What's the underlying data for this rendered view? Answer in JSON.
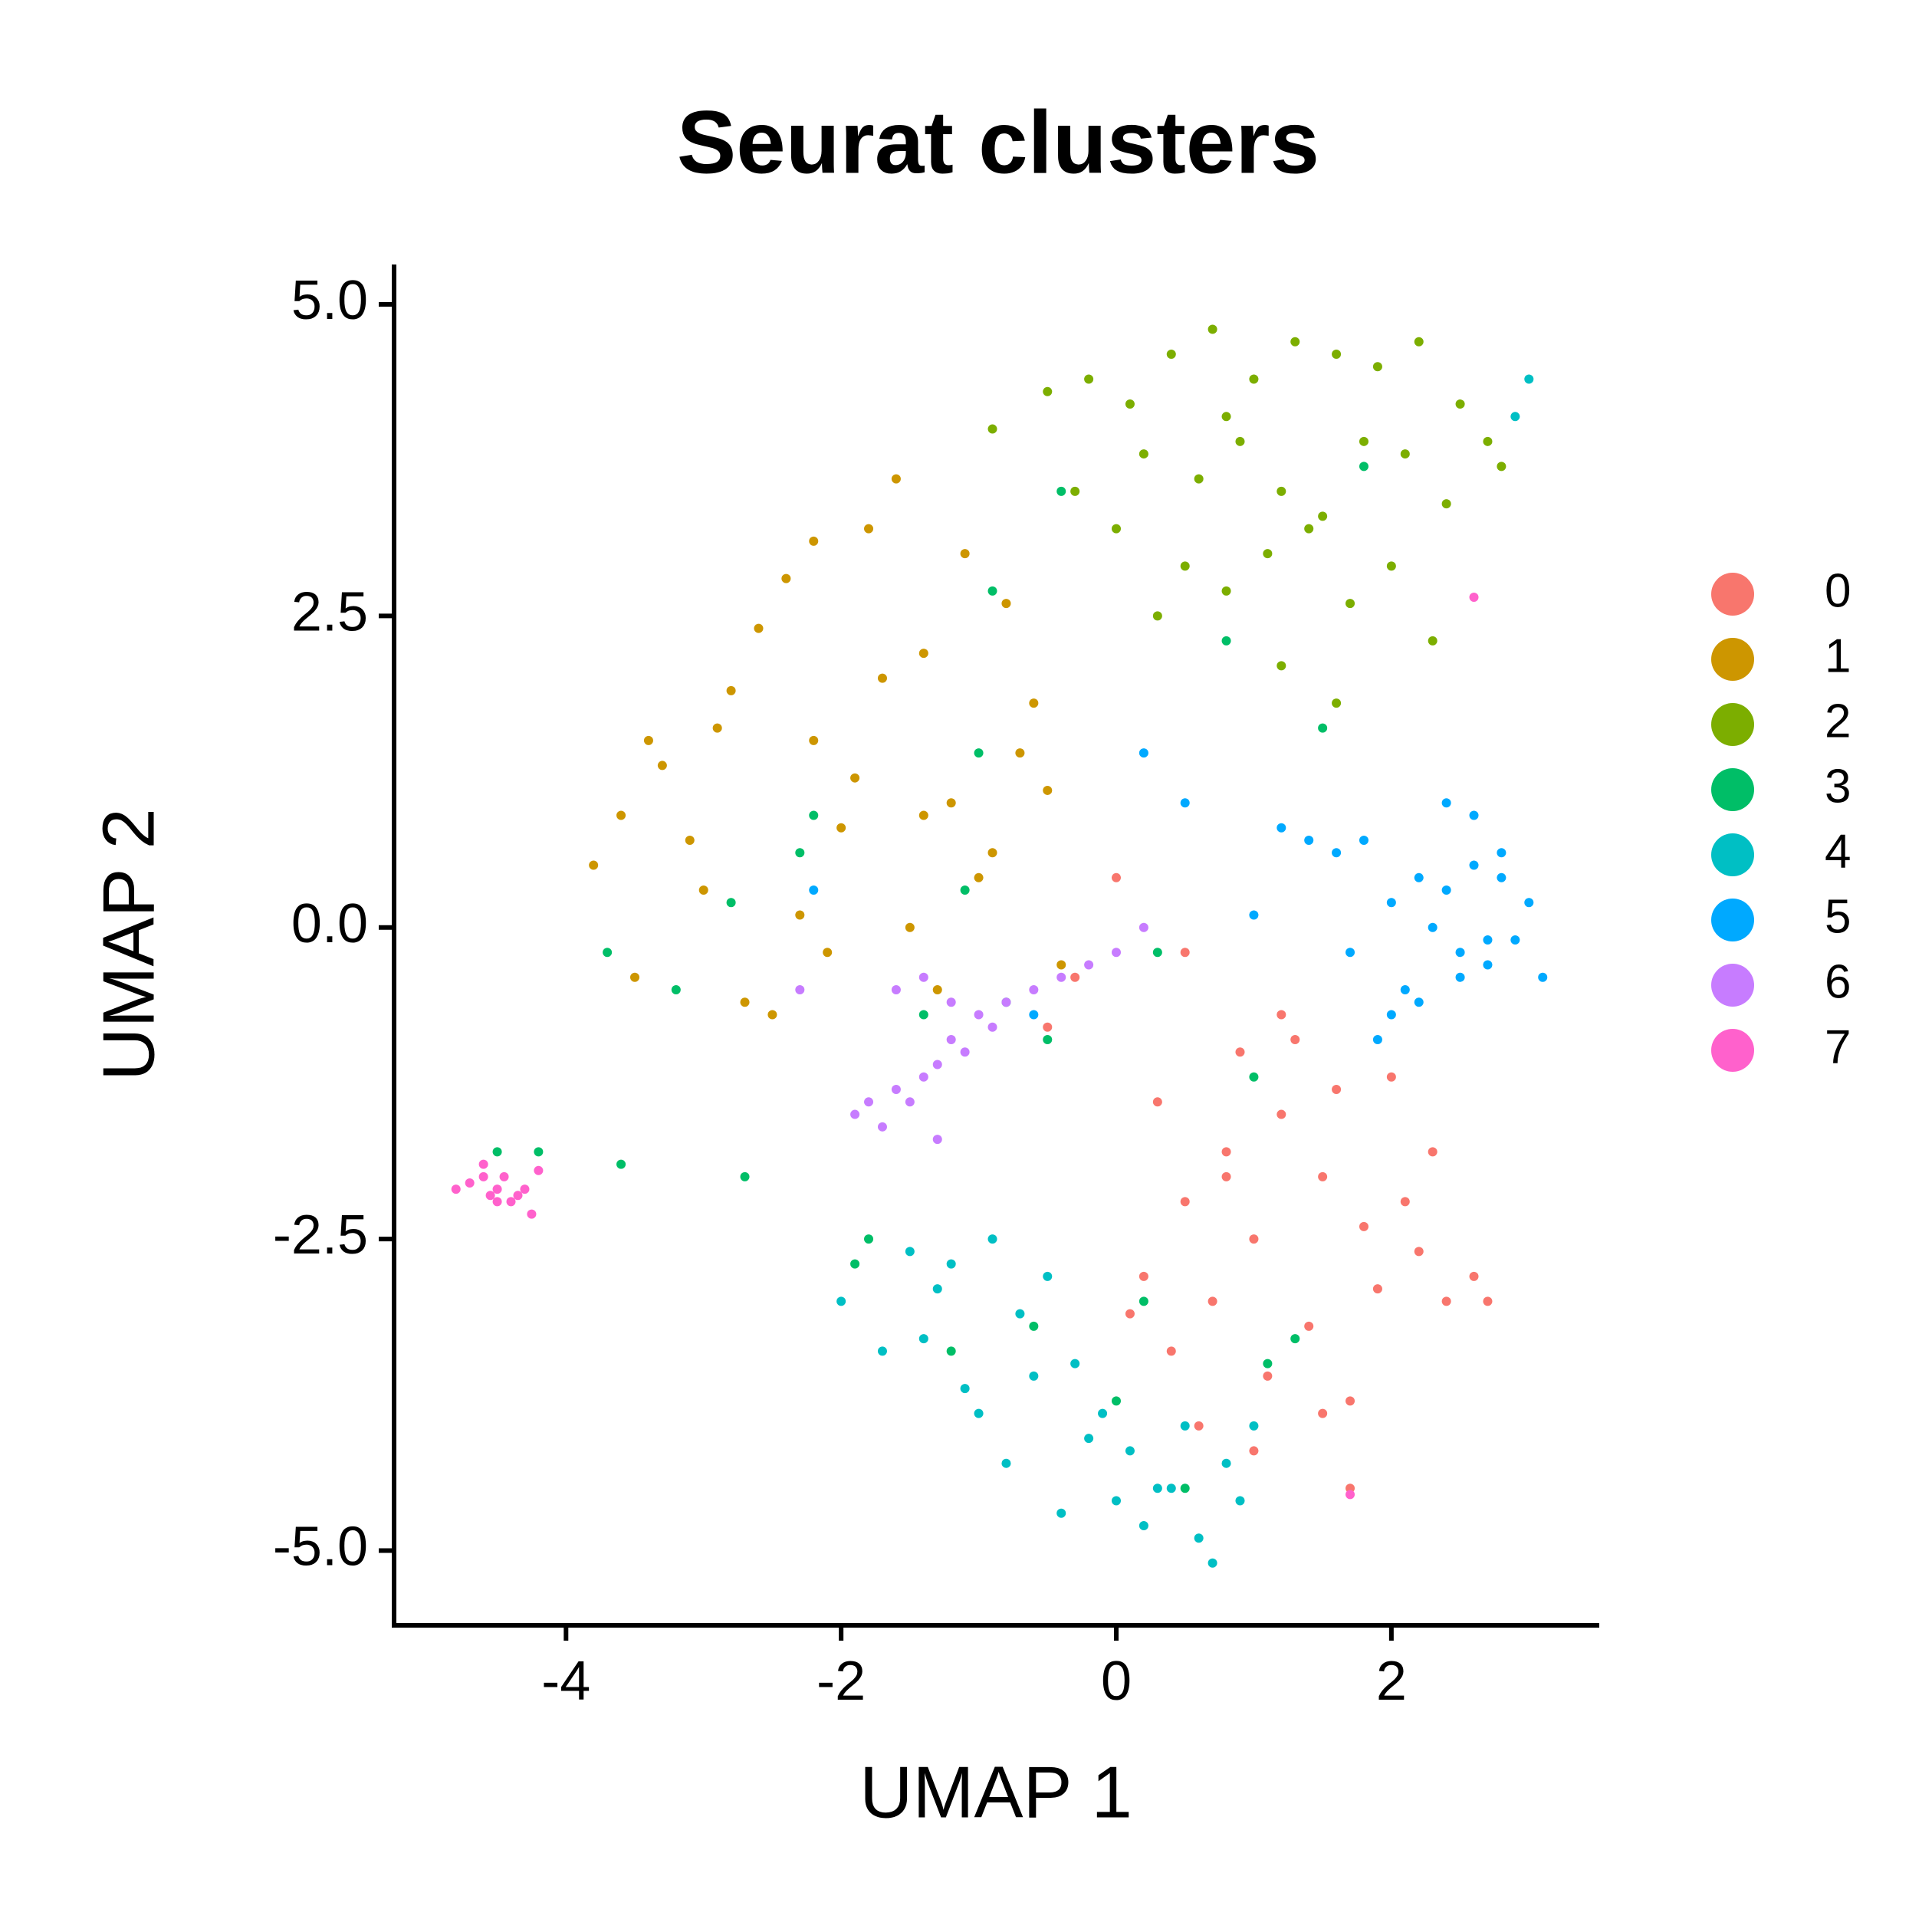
{
  "chart_data": {
    "type": "scatter",
    "title": "Seurat clusters",
    "x_label": "UMAP 1",
    "y_label": "UMAP 2",
    "xlim": [
      -5.25,
      3.5
    ],
    "ylim": [
      -5.6,
      5.32
    ],
    "xticks": [
      -4,
      -2,
      0,
      2
    ],
    "yticks": [
      {
        "value": 5,
        "label": "5.0"
      },
      2.5,
      {
        "value": 0,
        "label": "0.0"
      },
      -2.5,
      {
        "value": -5,
        "label": "-5.0"
      }
    ],
    "grid": false,
    "legend": "right",
    "series": [
      {
        "name": "0",
        "color": "#F8766D",
        "x": [
          0.2,
          0.5,
          0.8,
          1.0,
          1.2,
          1.5,
          1.8,
          2.0,
          2.2,
          2.4,
          0.4,
          0.7,
          1.1,
          1.4,
          1.7,
          2.1,
          0.3,
          0.9,
          1.3,
          1.6,
          1.9,
          2.3,
          0.6,
          1.0,
          1.5,
          0.1,
          0.8,
          1.2,
          2.6,
          -0.3,
          0.0,
          0.5,
          1.7,
          -0.5,
          2.7
        ],
        "values": [
          -2.8,
          -2.2,
          -1.8,
          -2.5,
          -1.5,
          -2.0,
          -2.4,
          -1.2,
          -2.6,
          -3.0,
          -3.4,
          -3.0,
          -3.6,
          -3.2,
          -3.8,
          -2.2,
          -1.4,
          -1.0,
          -0.9,
          -1.3,
          -2.9,
          -1.8,
          -4.0,
          -4.2,
          -3.9,
          -3.1,
          -2.0,
          -0.7,
          -2.8,
          -0.4,
          0.4,
          -0.2,
          -4.5,
          -0.8,
          -3.0
        ]
      },
      {
        "name": "1",
        "color": "#CD9600",
        "x": [
          -3.8,
          -3.6,
          -3.3,
          -3.0,
          -2.8,
          -2.6,
          -2.4,
          -2.2,
          -2.0,
          -1.8,
          -1.6,
          -1.4,
          -1.2,
          -1.0,
          -0.8,
          -0.6,
          -0.4,
          -3.5,
          -3.1,
          -2.7,
          -2.3,
          -1.9,
          -1.5,
          -1.1,
          -0.7,
          -2.5,
          -2.1,
          -1.7,
          -1.3,
          -0.9,
          -2.9,
          -3.4,
          -1.4,
          -0.5,
          -2.2
        ],
        "values": [
          0.5,
          0.9,
          1.3,
          0.3,
          1.9,
          2.4,
          2.8,
          1.5,
          0.8,
          3.2,
          3.6,
          2.2,
          1.0,
          0.4,
          2.6,
          1.8,
          -0.3,
          -0.4,
          0.7,
          -0.6,
          0.1,
          1.2,
          0.0,
          3.0,
          1.4,
          -0.7,
          -0.2,
          2.0,
          -0.5,
          0.6,
          1.6,
          1.5,
          0.9,
          1.1,
          3.1
        ]
      },
      {
        "name": "2",
        "color": "#7CAE00",
        "x": [
          -0.9,
          -0.5,
          -0.2,
          0.1,
          0.4,
          0.7,
          1.0,
          1.3,
          1.6,
          1.9,
          2.2,
          2.5,
          2.8,
          -0.3,
          0.2,
          0.6,
          0.9,
          1.2,
          1.5,
          1.8,
          2.1,
          2.4,
          2.7,
          0.0,
          0.5,
          0.8,
          1.1,
          1.4,
          1.7,
          2.0,
          1.2,
          1.6,
          0.3,
          2.3,
          0.8
        ],
        "values": [
          4.0,
          4.3,
          4.4,
          4.2,
          4.6,
          4.8,
          4.4,
          4.7,
          4.6,
          4.5,
          4.7,
          4.2,
          3.7,
          3.5,
          3.8,
          3.6,
          3.9,
          3.5,
          3.3,
          3.9,
          3.8,
          3.4,
          3.9,
          3.2,
          2.9,
          2.7,
          3.0,
          3.2,
          2.6,
          2.9,
          2.1,
          1.8,
          2.5,
          2.3,
          4.1
        ]
      },
      {
        "name": "3",
        "color": "#00BE67",
        "x": [
          -4.5,
          -4.2,
          -3.6,
          -2.7,
          -1.8,
          -1.2,
          -0.6,
          0.0,
          0.5,
          1.1,
          1.5,
          -0.4,
          -1.0,
          -2.2,
          -2.8,
          -3.7,
          0.8,
          1.8,
          -1.9,
          -1.4,
          -0.8,
          0.3,
          1.0,
          -0.5,
          -1.1,
          -3.2,
          -2.3,
          0.2,
          1.3,
          -0.9
        ],
        "values": [
          -1.8,
          -1.8,
          -1.9,
          -2.0,
          -2.5,
          -3.4,
          -3.2,
          -3.8,
          -4.5,
          -3.5,
          1.6,
          3.5,
          1.4,
          0.9,
          0.2,
          -0.2,
          2.3,
          3.7,
          -2.7,
          -0.7,
          -0.6,
          -0.2,
          -1.2,
          -0.9,
          0.3,
          -0.5,
          0.6,
          -3.0,
          -3.3,
          2.7
        ]
      },
      {
        "name": "4",
        "color": "#00BFC4",
        "x": [
          -2.0,
          -1.7,
          -1.4,
          -1.2,
          -1.0,
          -0.8,
          -0.6,
          -0.4,
          -0.2,
          0.0,
          0.2,
          0.4,
          0.6,
          0.8,
          1.0,
          -1.5,
          -1.1,
          -0.7,
          -0.3,
          0.1,
          0.5,
          0.9,
          -0.9,
          -0.5,
          -0.1,
          0.3,
          0.7,
          2.9,
          3.0,
          -1.3
        ],
        "values": [
          -3.0,
          -3.4,
          -3.3,
          -2.7,
          -3.9,
          -4.3,
          -3.6,
          -4.7,
          -4.1,
          -4.6,
          -4.8,
          -4.5,
          -4.9,
          -4.3,
          -4.0,
          -2.6,
          -3.7,
          -3.1,
          -3.5,
          -4.2,
          -4.0,
          -4.6,
          -2.5,
          -2.8,
          -3.9,
          -4.5,
          -5.1,
          4.1,
          4.4,
          -2.9
        ]
      },
      {
        "name": "5",
        "color": "#00A9FF",
        "x": [
          1.4,
          1.6,
          1.8,
          2.0,
          2.2,
          2.4,
          2.6,
          2.8,
          3.0,
          3.1,
          2.5,
          2.7,
          2.9,
          2.3,
          2.1,
          1.9,
          1.2,
          1.0,
          0.5,
          0.2,
          2.4,
          2.6,
          2.8,
          2.2,
          1.7,
          2.0,
          -2.2,
          -0.6,
          2.5,
          2.7
        ],
        "values": [
          0.7,
          0.6,
          0.7,
          0.2,
          0.4,
          0.3,
          0.5,
          0.4,
          0.2,
          -0.4,
          -0.2,
          -0.3,
          -0.1,
          0.0,
          -0.5,
          -0.9,
          0.8,
          0.1,
          1.0,
          1.4,
          1.0,
          0.9,
          0.6,
          -0.6,
          -0.2,
          -0.7,
          0.3,
          -0.7,
          -0.4,
          -0.1
        ]
      },
      {
        "name": "6",
        "color": "#C77CFF",
        "x": [
          -1.9,
          -1.8,
          -1.7,
          -1.6,
          -1.5,
          -1.4,
          -1.3,
          -1.2,
          -1.1,
          -1.0,
          -0.8,
          -0.6,
          -0.4,
          -0.2,
          0.0,
          0.2,
          -1.6,
          -1.4,
          -1.2,
          -2.3,
          -1.3,
          -0.9
        ],
        "values": [
          -1.5,
          -1.4,
          -1.6,
          -1.3,
          -1.4,
          -1.2,
          -1.1,
          -0.9,
          -1.0,
          -0.7,
          -0.6,
          -0.5,
          -0.4,
          -0.3,
          -0.2,
          0.0,
          -0.5,
          -0.4,
          -0.6,
          -0.5,
          -1.7,
          -0.8
        ]
      },
      {
        "name": "7",
        "color": "#FF61CC",
        "x": [
          -4.8,
          -4.7,
          -4.6,
          -4.55,
          -4.5,
          -4.45,
          -4.4,
          -4.35,
          -4.3,
          -4.25,
          -4.6,
          -4.5,
          -4.2,
          1.7,
          2.6
        ],
        "values": [
          -2.1,
          -2.05,
          -2.0,
          -2.15,
          -2.1,
          -2.0,
          -2.2,
          -2.15,
          -2.1,
          -2.3,
          -1.9,
          -2.2,
          -1.95,
          -4.55,
          2.65
        ]
      }
    ]
  }
}
